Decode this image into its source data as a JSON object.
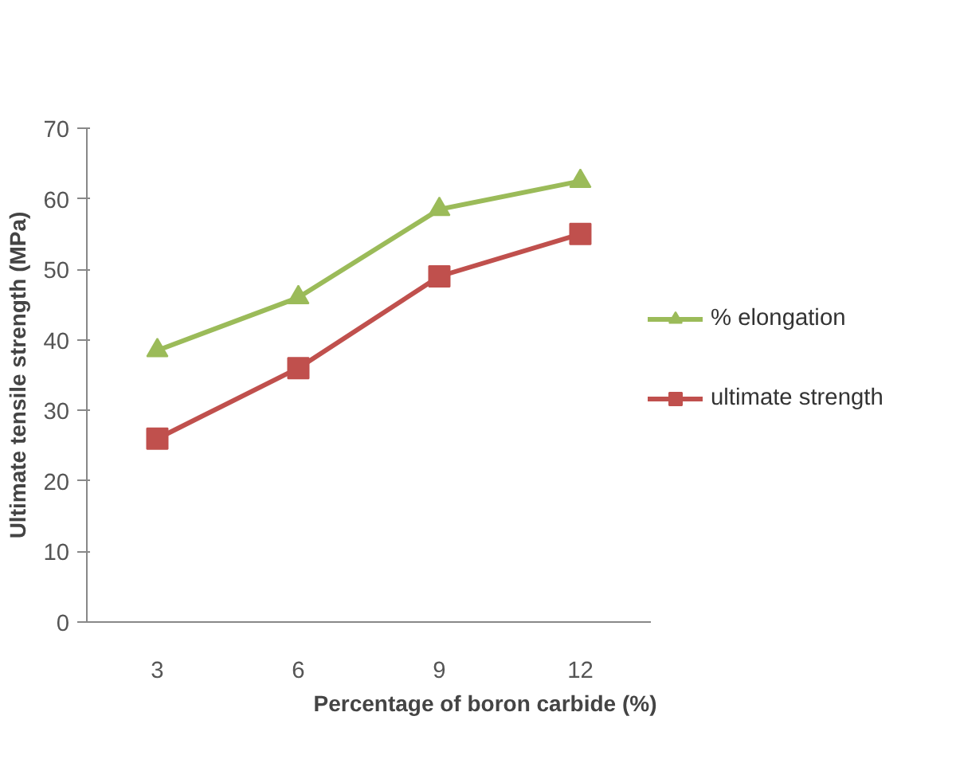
{
  "chart_data": {
    "type": "line",
    "xlabel": "Percentage of boron carbide (%)",
    "ylabel": "Ultimate tensile strength (MPa)",
    "categories": [
      "3",
      "6",
      "9",
      "12"
    ],
    "series": [
      {
        "name": "% elongation",
        "color": "#9bbb59",
        "values": [
          38.5,
          46,
          58.5,
          62.5
        ],
        "marker": "triangle"
      },
      {
        "name": "ultimate strength",
        "color": "#c0504d",
        "values": [
          26,
          36,
          49,
          55
        ],
        "marker": "square"
      }
    ],
    "ylim": [
      0,
      70
    ],
    "yticks": [
      0,
      10,
      20,
      30,
      40,
      50,
      60,
      70
    ],
    "grid": false,
    "legend": "right",
    "line_style": "solid"
  }
}
